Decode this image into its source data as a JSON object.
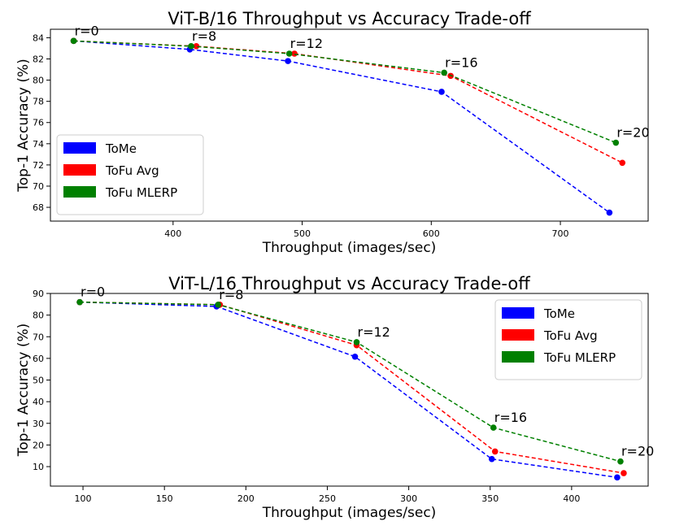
{
  "chart_data": [
    {
      "type": "line",
      "title": "ViT-B/16 Throughput vs Accuracy Trade-off",
      "xlabel": "Throughput (images/sec)",
      "ylabel": "Top-1 Accuracy (%)",
      "xlim": [
        305,
        768
      ],
      "ylim": [
        66.7,
        84.8
      ],
      "xticks": [
        400,
        500,
        600,
        700
      ],
      "yticks": [
        68,
        70,
        72,
        74,
        76,
        78,
        80,
        82,
        84
      ],
      "legend_position": "lower-left",
      "grid": false,
      "series": [
        {
          "name": "ToMe",
          "color": "#0000ff",
          "x": [
            323,
            413,
            489,
            608,
            738
          ],
          "y": [
            83.7,
            82.9,
            81.8,
            78.9,
            67.5
          ]
        },
        {
          "name": "ToFu Avg",
          "color": "#ff0000",
          "x": [
            323,
            418,
            494,
            615,
            748
          ],
          "y": [
            83.7,
            83.2,
            82.5,
            80.4,
            72.2
          ]
        },
        {
          "name": "ToFu MLERP",
          "color": "#008000",
          "x": [
            323,
            414,
            490,
            610,
            743
          ],
          "y": [
            83.7,
            83.2,
            82.5,
            80.7,
            74.1
          ]
        }
      ],
      "annotations": [
        {
          "text": "r=0",
          "x": 323,
          "y": 83.7
        },
        {
          "text": "r=8",
          "x": 414,
          "y": 83.2
        },
        {
          "text": "r=12",
          "x": 490,
          "y": 82.5
        },
        {
          "text": "r=16",
          "x": 610,
          "y": 80.7
        },
        {
          "text": "r=20",
          "x": 743,
          "y": 74.1
        }
      ]
    },
    {
      "type": "line",
      "title": "ViT-L/16 Throughput vs Accuracy Trade-off",
      "xlabel": "Throughput (images/sec)",
      "ylabel": "Top-1 Accuracy (%)",
      "xlim": [
        80,
        447
      ],
      "ylim": [
        1,
        90
      ],
      "xticks": [
        100,
        150,
        200,
        250,
        300,
        350,
        400
      ],
      "yticks": [
        10,
        20,
        30,
        40,
        50,
        60,
        70,
        80,
        90
      ],
      "legend_position": "upper-right",
      "grid": false,
      "series": [
        {
          "name": "ToMe",
          "color": "#0000ff",
          "x": [
            98,
            182,
            267,
            351,
            428
          ],
          "y": [
            86.0,
            84.0,
            60.8,
            13.5,
            5.0
          ]
        },
        {
          "name": "ToFu Avg",
          "color": "#ff0000",
          "x": [
            98,
            184,
            268,
            353,
            432
          ],
          "y": [
            86.0,
            84.8,
            66.1,
            17.0,
            7.0
          ]
        },
        {
          "name": "ToFu MLERP",
          "color": "#008000",
          "x": [
            98,
            183,
            268,
            352,
            430
          ],
          "y": [
            86.0,
            84.8,
            67.5,
            28.0,
            12.4
          ]
        }
      ],
      "annotations": [
        {
          "text": "r=0",
          "x": 98,
          "y": 86.0
        },
        {
          "text": "r=8",
          "x": 183,
          "y": 84.8
        },
        {
          "text": "r=12",
          "x": 268,
          "y": 67.5
        },
        {
          "text": "r=16",
          "x": 352,
          "y": 28.0
        },
        {
          "text": "r=20",
          "x": 430,
          "y": 12.4
        }
      ]
    }
  ]
}
